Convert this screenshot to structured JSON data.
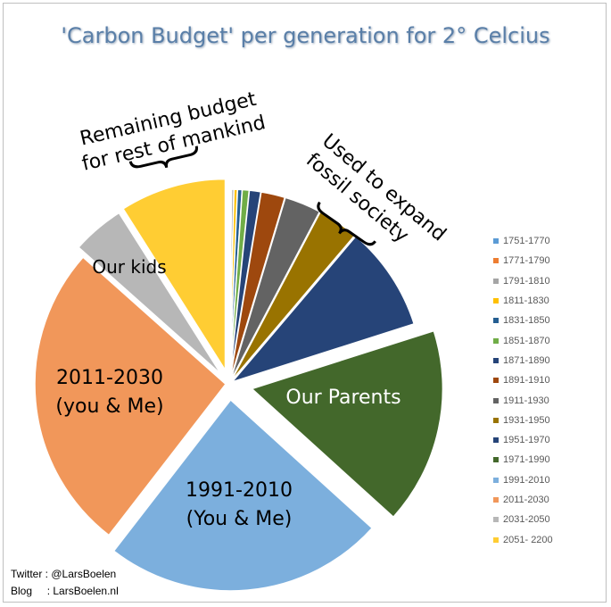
{
  "title": "'Carbon Budget' per generation for 2° Celcius",
  "chart_data": {
    "type": "pie",
    "title": "'Carbon Budget' per generation for 2° Celcius",
    "categories": [
      "1751-1770",
      "1771-1790",
      "1791-1810",
      "1811-1830",
      "1831-1850",
      "1851-1870",
      "1871-1890",
      "1891-1910",
      "1911-1930",
      "1931-1950",
      "1951-1970",
      "1971-1990",
      "1991-2010",
      "2011-2030",
      "2031-2050",
      "2051- 2200"
    ],
    "values": [
      0.1,
      0.1,
      0.2,
      0.3,
      0.4,
      0.6,
      1.0,
      2.1,
      3.2,
      3.6,
      9.2,
      17.2,
      24.6,
      27.0,
      4.6,
      9.3
    ],
    "colors": [
      "#5b9bd5",
      "#ed7d31",
      "#a5a5a5",
      "#ffc000",
      "#255e91",
      "#70ad47",
      "#264478",
      "#9e480e",
      "#636363",
      "#997300",
      "#264478",
      "#43682b",
      "#7cafdd",
      "#f1975a",
      "#b7b7b7",
      "#ffcd33"
    ],
    "legend_position": "right"
  },
  "annotations": {
    "remaining": "Remaining budget\nfor rest of mankind",
    "used": "Used to expand\nfossil society",
    "our_kids": "Our kids",
    "you_me_2011": "2011-2030\n(you & Me)",
    "you_me_1991": "1991-2010\n(You & Me)",
    "our_parents": "Our Parents"
  },
  "credits": {
    "twitter": "Twitter : @LarsBoelen",
    "blog": "Blog     : LarsBoelen.nl"
  }
}
